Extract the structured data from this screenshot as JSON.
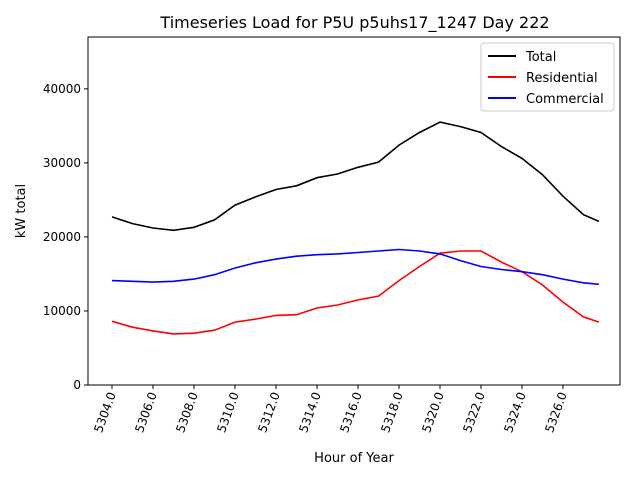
{
  "chart_data": {
    "type": "line",
    "title": "Timeseries Load for P5U p5uhs17_1247  Day 222",
    "xlabel": "Hour of Year",
    "ylabel": "kW total",
    "xlim": [
      5302.83,
      5328.78
    ],
    "ylim": [
      0,
      47000
    ],
    "xticks": [
      5304,
      5306,
      5308,
      5310,
      5312,
      5314,
      5316,
      5318,
      5320,
      5322,
      5324,
      5326
    ],
    "xtick_labels": [
      "5304.0",
      "5306.0",
      "5308.0",
      "5310.0",
      "5312.0",
      "5314.0",
      "5316.0",
      "5318.0",
      "5320.0",
      "5322.0",
      "5324.0",
      "5326.0"
    ],
    "yticks": [
      0,
      10000,
      20000,
      30000,
      40000
    ],
    "ytick_labels": [
      "0",
      "10000",
      "20000",
      "30000",
      "40000"
    ],
    "grid": false,
    "legend_position": "top-right",
    "x": [
      5304,
      5305,
      5306,
      5307,
      5308,
      5309,
      5310,
      5311,
      5312,
      5313,
      5314,
      5315,
      5316,
      5317,
      5318,
      5319,
      5320,
      5321,
      5322,
      5323,
      5324,
      5325,
      5326,
      5327,
      5327.75
    ],
    "series": [
      {
        "name": "Total",
        "color": "#000000",
        "values": [
          22700,
          21800,
          21200,
          20900,
          21300,
          22300,
          24300,
          25400,
          26400,
          26900,
          28000,
          28500,
          29400,
          30100,
          32400,
          34100,
          35500,
          34900,
          34100,
          32200,
          30600,
          28400,
          25500,
          23000,
          22100
        ]
      },
      {
        "name": "Residential",
        "color": "#ff0000",
        "values": [
          8600,
          7800,
          7300,
          6900,
          7000,
          7400,
          8500,
          8900,
          9400,
          9500,
          10400,
          10800,
          11500,
          12000,
          14100,
          16000,
          17800,
          18100,
          18100,
          16600,
          15300,
          13500,
          11200,
          9200,
          8500
        ]
      },
      {
        "name": "Commercial",
        "color": "#0000ff",
        "values": [
          14100,
          14000,
          13900,
          14000,
          14300,
          14900,
          15800,
          16500,
          17000,
          17400,
          17600,
          17700,
          17900,
          18100,
          18300,
          18100,
          17700,
          16800,
          16000,
          15600,
          15300,
          14900,
          14300,
          13800,
          13600
        ]
      }
    ]
  }
}
